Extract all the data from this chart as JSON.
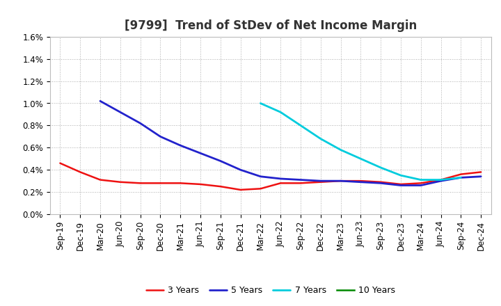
{
  "title": "[9799]  Trend of StDev of Net Income Margin",
  "ylim": [
    0.0,
    0.016
  ],
  "yticks": [
    0.0,
    0.002,
    0.004,
    0.006,
    0.008,
    0.01,
    0.012,
    0.014,
    0.016
  ],
  "ytick_labels": [
    "0.0%",
    "0.2%",
    "0.4%",
    "0.6%",
    "0.8%",
    "1.0%",
    "1.2%",
    "1.4%",
    "1.6%"
  ],
  "x_labels": [
    "Sep-19",
    "Dec-19",
    "Mar-20",
    "Jun-20",
    "Sep-20",
    "Dec-20",
    "Mar-21",
    "Jun-21",
    "Sep-21",
    "Dec-21",
    "Mar-22",
    "Jun-22",
    "Sep-22",
    "Dec-22",
    "Mar-23",
    "Jun-23",
    "Sep-23",
    "Dec-23",
    "Mar-24",
    "Jun-24",
    "Sep-24",
    "Dec-24"
  ],
  "series": {
    "3 Years": {
      "color": "#EE1111",
      "linewidth": 1.8,
      "values": [
        0.0046,
        0.0038,
        0.0031,
        0.0029,
        0.0028,
        0.0028,
        0.0028,
        0.0027,
        0.0025,
        0.0022,
        0.0023,
        0.0028,
        0.0028,
        0.0029,
        0.003,
        0.003,
        0.0029,
        0.0027,
        0.0028,
        0.0031,
        0.0036,
        0.0038
      ]
    },
    "5 Years": {
      "color": "#2222CC",
      "linewidth": 2.0,
      "values": [
        null,
        null,
        0.0102,
        0.0092,
        0.0082,
        0.007,
        0.0062,
        0.0055,
        0.0048,
        0.004,
        0.0034,
        0.0032,
        0.0031,
        0.003,
        0.003,
        0.0029,
        0.0028,
        0.0026,
        0.0026,
        0.003,
        0.0033,
        0.0034
      ]
    },
    "7 Years": {
      "color": "#00CCDD",
      "linewidth": 2.0,
      "values": [
        null,
        null,
        null,
        null,
        null,
        null,
        null,
        null,
        null,
        null,
        0.01,
        0.0092,
        0.008,
        0.0068,
        0.0058,
        0.005,
        0.0042,
        0.0035,
        0.0031,
        0.0031,
        0.0033,
        null
      ]
    },
    "10 Years": {
      "color": "#008800",
      "linewidth": 1.8,
      "values": [
        null,
        null,
        null,
        null,
        null,
        null,
        null,
        null,
        null,
        null,
        null,
        null,
        null,
        null,
        null,
        null,
        null,
        null,
        null,
        null,
        null,
        null
      ]
    }
  },
  "legend_entries": [
    "3 Years",
    "5 Years",
    "7 Years",
    "10 Years"
  ],
  "background_color": "#FFFFFF",
  "grid_color": "#999999",
  "title_fontsize": 12,
  "tick_fontsize": 8.5
}
